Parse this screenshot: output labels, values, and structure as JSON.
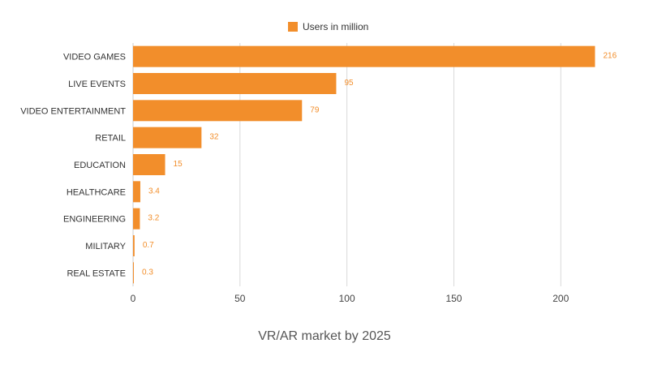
{
  "chart_data": {
    "type": "bar",
    "orientation": "horizontal",
    "title": "VR/AR market by 2025",
    "xlabel": "",
    "ylabel": "",
    "categories": [
      "VIDEO GAMES",
      "LIVE EVENTS",
      "VIDEO ENTERTAINMENT",
      "RETAIL",
      "EDUCATION",
      "HEALTHCARE",
      "ENGINEERING",
      "MILITARY",
      "REAL ESTATE"
    ],
    "series": [
      {
        "name": "Users in million",
        "values": [
          216,
          95,
          79,
          32,
          15,
          3.4,
          3.2,
          0.7,
          0.3
        ],
        "value_labels": [
          "216",
          "95",
          "79",
          "32",
          "15",
          "3.4",
          "3.2",
          "0.7",
          "0.3"
        ]
      }
    ],
    "xlim": [
      0,
      220
    ],
    "xticks": [
      0,
      50,
      100,
      150,
      200
    ],
    "grid": true,
    "legend_position": "top-center"
  },
  "colors": {
    "bar": "#f28e2b",
    "grid": "#d9d9d9",
    "value_label": "#f28e2b"
  }
}
